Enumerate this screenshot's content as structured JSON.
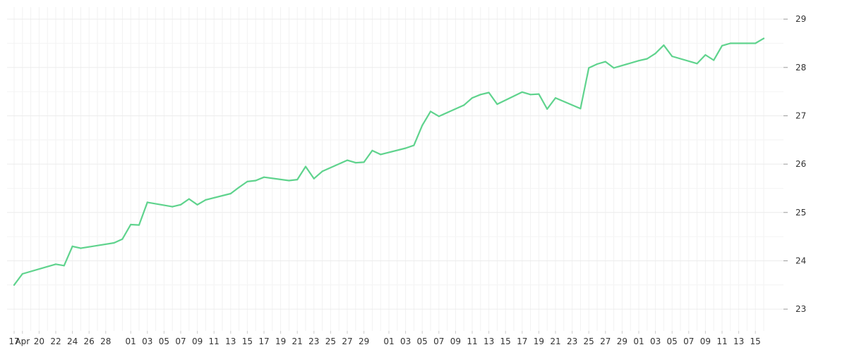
{
  "chart_data": {
    "type": "line",
    "title": "",
    "xlabel": "",
    "ylabel": "",
    "ylim": [
      22.55,
      29.25
    ],
    "grid": true,
    "y_axis_position": "right",
    "y_ticks": [
      23,
      24,
      25,
      26,
      27,
      28,
      29
    ],
    "x_tick_labels": [
      "17",
      "Apr",
      "20",
      "22",
      "24",
      "26",
      "28",
      "01",
      "03",
      "05",
      "07",
      "09",
      "11",
      "13",
      "15",
      "17",
      "19",
      "21",
      "23",
      "25",
      "27",
      "29",
      "01",
      "03",
      "05",
      "07",
      "09",
      "11",
      "13",
      "15",
      "17",
      "19",
      "21",
      "23",
      "25",
      "27",
      "29",
      "01",
      "03",
      "05",
      "07",
      "09",
      "11",
      "13",
      "15"
    ],
    "x_tick_days": [
      0,
      1,
      3,
      5,
      7,
      9,
      11,
      14,
      16,
      18,
      20,
      22,
      24,
      26,
      28,
      30,
      32,
      34,
      36,
      38,
      40,
      42,
      45,
      47,
      49,
      51,
      53,
      55,
      57,
      59,
      61,
      63,
      65,
      67,
      69,
      71,
      73,
      75,
      77,
      79,
      81,
      83,
      85,
      87,
      89
    ],
    "line_color": "#5fd38d",
    "series": [
      {
        "name": "",
        "points": [
          [
            0,
            23.5
          ],
          [
            1,
            23.73
          ],
          [
            5,
            23.93
          ],
          [
            6,
            23.9
          ],
          [
            7,
            24.3
          ],
          [
            8,
            24.26
          ],
          [
            12,
            24.37
          ],
          [
            13,
            24.45
          ],
          [
            14,
            24.75
          ],
          [
            15,
            24.74
          ],
          [
            16,
            25.21
          ],
          [
            19,
            25.12
          ],
          [
            20,
            25.16
          ],
          [
            21,
            25.28
          ],
          [
            22,
            25.16
          ],
          [
            23,
            25.26
          ],
          [
            26,
            25.39
          ],
          [
            27,
            25.52
          ],
          [
            28,
            25.64
          ],
          [
            29,
            25.66
          ],
          [
            30,
            25.73
          ],
          [
            33,
            25.66
          ],
          [
            34,
            25.68
          ],
          [
            35,
            25.95
          ],
          [
            36,
            25.7
          ],
          [
            37,
            25.85
          ],
          [
            40,
            26.08
          ],
          [
            41,
            26.03
          ],
          [
            42,
            26.04
          ],
          [
            43,
            26.28
          ],
          [
            44,
            26.2
          ],
          [
            47,
            26.33
          ],
          [
            48,
            26.39
          ],
          [
            49,
            26.8
          ],
          [
            50,
            27.09
          ],
          [
            51,
            26.99
          ],
          [
            54,
            27.22
          ],
          [
            55,
            27.37
          ],
          [
            56,
            27.44
          ],
          [
            57,
            27.48
          ],
          [
            58,
            27.24
          ],
          [
            61,
            27.49
          ],
          [
            62,
            27.44
          ],
          [
            63,
            27.45
          ],
          [
            64,
            27.14
          ],
          [
            65,
            27.37
          ],
          [
            68,
            27.15
          ],
          [
            69,
            27.99
          ],
          [
            70,
            28.07
          ],
          [
            71,
            28.12
          ],
          [
            72,
            27.99
          ],
          [
            75,
            28.14
          ],
          [
            76,
            28.18
          ],
          [
            77,
            28.29
          ],
          [
            78,
            28.46
          ],
          [
            79,
            28.23
          ],
          [
            82,
            28.08
          ],
          [
            83,
            28.26
          ],
          [
            84,
            28.15
          ],
          [
            85,
            28.45
          ],
          [
            86,
            28.5
          ],
          [
            89,
            28.5
          ],
          [
            90,
            28.6
          ]
        ]
      }
    ]
  }
}
